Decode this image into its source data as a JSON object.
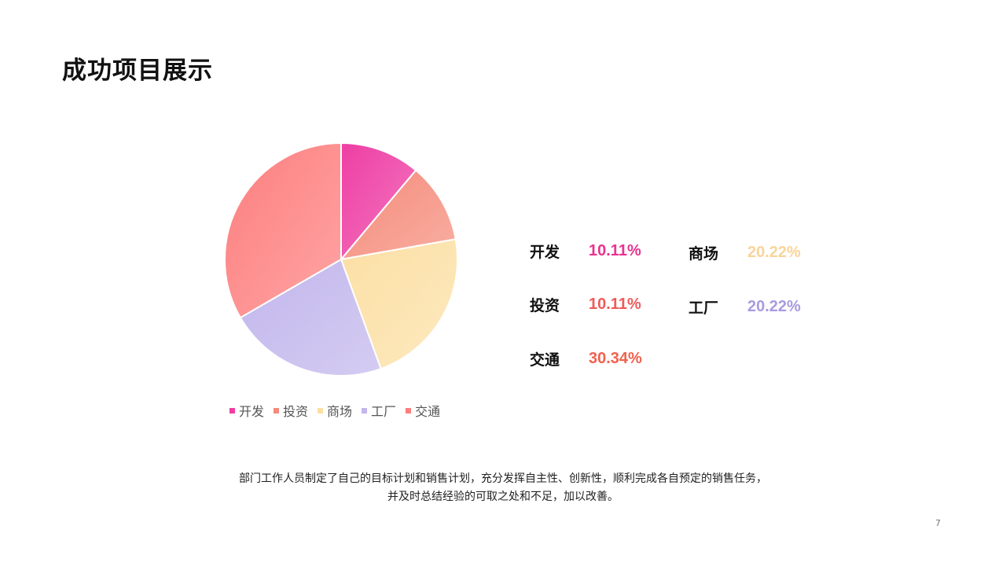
{
  "slide": {
    "title": "成功项目展示",
    "description_line1": "部门工作人员制定了自己的目标计划和销售计划，充分发挥自主性、创新性，顺利完成各自预定的销售任务，",
    "description_line2": "并及时总结经验的可取之处和不足，加以改善。",
    "page_number": "7"
  },
  "stats": [
    {
      "label": "开发",
      "value": "10.11%",
      "color": "#e8338f"
    },
    {
      "label": "商场",
      "value": "20.22%",
      "color": "#f9d49a"
    },
    {
      "label": "投资",
      "value": "10.11%",
      "color": "#f05a5a"
    },
    {
      "label": "工厂",
      "value": "20.22%",
      "color": "#a99be0"
    },
    {
      "label": "交通",
      "value": "30.34%",
      "color": "#f0614f"
    }
  ],
  "chart_data": {
    "type": "pie",
    "title": "",
    "categories": [
      "开发",
      "投资",
      "商场",
      "工厂",
      "交通"
    ],
    "values": [
      10.11,
      10.11,
      20.22,
      20.22,
      30.34
    ],
    "colors": [
      "#ee3ea4",
      "#f58b7a",
      "#fcdfa4",
      "#c2b6ec",
      "#fd7e7e"
    ],
    "legend_position": "bottom-left"
  }
}
